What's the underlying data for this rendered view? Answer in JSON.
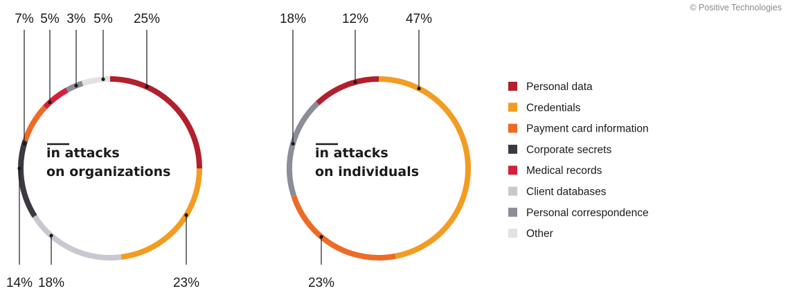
{
  "copyright": "© Positive Technologies",
  "legend": [
    {
      "label": "Personal data",
      "color": "#B21F2D"
    },
    {
      "label": "Credentials",
      "color": "#F39C22"
    },
    {
      "label": "Payment card information",
      "color": "#EE6A25"
    },
    {
      "label": "Corporate secrets",
      "color": "#3D3843"
    },
    {
      "label": "Medical records",
      "color": "#D5203A"
    },
    {
      "label": "Client databases",
      "color": "#C9C7D0"
    },
    {
      "label": "Personal correspondence",
      "color": "#8B8E99"
    },
    {
      "label": "Other",
      "color": "#E2E2E2"
    }
  ],
  "chart_data": [
    {
      "type": "pie",
      "title_lines": [
        "in attacks",
        "on organizations"
      ],
      "slices": [
        {
          "category": "Personal data",
          "value": 25,
          "label": "25%"
        },
        {
          "category": "Credentials",
          "value": 23,
          "label": "23%"
        },
        {
          "category": "Client databases",
          "value": 18,
          "label": "18%"
        },
        {
          "category": "Corporate secrets",
          "value": 14,
          "label": "14%"
        },
        {
          "category": "Payment card information",
          "value": 7,
          "label": "7%"
        },
        {
          "category": "Medical records",
          "value": 5,
          "label": "5%"
        },
        {
          "category": "Personal correspondence",
          "value": 3,
          "label": "3%"
        },
        {
          "category": "Other",
          "value": 5,
          "label": "5%"
        }
      ]
    },
    {
      "type": "pie",
      "title_lines": [
        "in attacks",
        "on individuals"
      ],
      "slices": [
        {
          "category": "Credentials",
          "value": 47,
          "label": "47%"
        },
        {
          "category": "Payment card information",
          "value": 23,
          "label": "23%"
        },
        {
          "category": "Personal correspondence",
          "value": 18,
          "label": "18%"
        },
        {
          "category": "Personal data",
          "value": 12,
          "label": "12%"
        }
      ]
    }
  ]
}
